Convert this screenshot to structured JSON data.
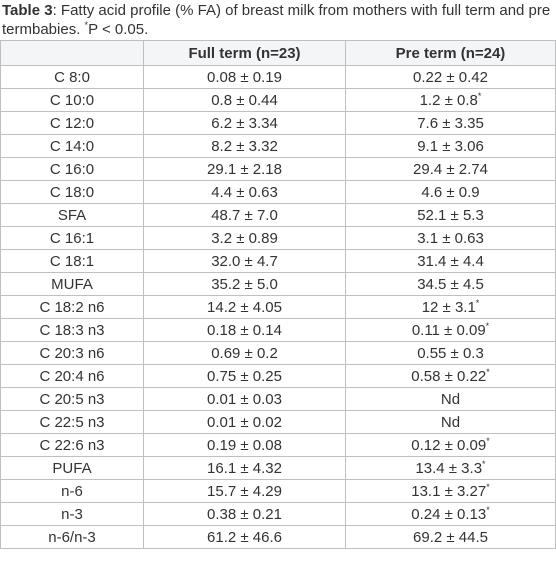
{
  "caption": {
    "label": "Table 3",
    "text": ": Fatty acid profile (% FA) of breast milk from mothers with full term and pre termbabies. ",
    "note": "*",
    "text2": "P < 0.05."
  },
  "table": {
    "header": [
      "",
      "Full term (n=23)",
      "Pre term (n=24)"
    ],
    "rows": [
      [
        "C 8:0",
        "0.08 ± 0.19",
        "0.22 ± 0.42"
      ],
      [
        "C 10:0",
        "0.8 ± 0.44",
        {
          "text": "1.2 ± 0.8",
          "note": "*"
        }
      ],
      [
        "C 12:0",
        "6.2 ± 3.34",
        "7.6 ± 3.35"
      ],
      [
        "C 14:0",
        "8.2 ± 3.32",
        "9.1 ± 3.06"
      ],
      [
        "C 16:0",
        "29.1 ± 2.18",
        "29.4 ± 2.74"
      ],
      [
        "C 18:0",
        "4.4 ± 0.63",
        "4.6 ± 0.9"
      ],
      [
        "SFA",
        "48.7 ± 7.0",
        "52.1 ± 5.3"
      ],
      [
        "C 16:1",
        "3.2 ± 0.89",
        "3.1 ± 0.63"
      ],
      [
        "C 18:1",
        "32.0 ± 4.7",
        "31.4 ± 4.4"
      ],
      [
        "MUFA",
        "35.2 ± 5.0",
        "34.5 ± 4.5"
      ],
      [
        "C 18:2 n6",
        "14.2 ± 4.05",
        {
          "text": "12 ± 3.1",
          "note": "*"
        }
      ],
      [
        "C 18:3 n3",
        "0.18 ± 0.14",
        {
          "text": "0.11 ± 0.09",
          "note": "*"
        }
      ],
      [
        "C 20:3 n6",
        "0.69 ± 0.2",
        "0.55 ± 0.3"
      ],
      [
        "C 20:4 n6",
        "0.75 ± 0.25",
        {
          "text": "0.58 ± 0.22",
          "note": "*"
        }
      ],
      [
        "C 20:5 n3",
        "0.01 ± 0.03",
        "Nd"
      ],
      [
        "C 22:5 n3",
        "0.01 ± 0.02",
        "Nd"
      ],
      [
        "C 22:6 n3",
        "0.19 ± 0.08",
        {
          "text": "0.12 ± 0.09",
          "note": "*"
        }
      ],
      [
        "PUFA",
        "16.1 ± 4.32",
        {
          "text": "13.4 ± 3.3",
          "note": "*"
        }
      ],
      [
        "n-6",
        "15.7 ± 4.29",
        {
          "text": "13.1 ± 3.27",
          "note": "*"
        }
      ],
      [
        "n-3",
        "0.38 ± 0.21",
        {
          "text": "0.24 ± 0.13",
          "note": "*"
        }
      ],
      [
        "n-6/n-3",
        "61.2 ± 46.6",
        "69.2 ± 44.5"
      ]
    ]
  }
}
